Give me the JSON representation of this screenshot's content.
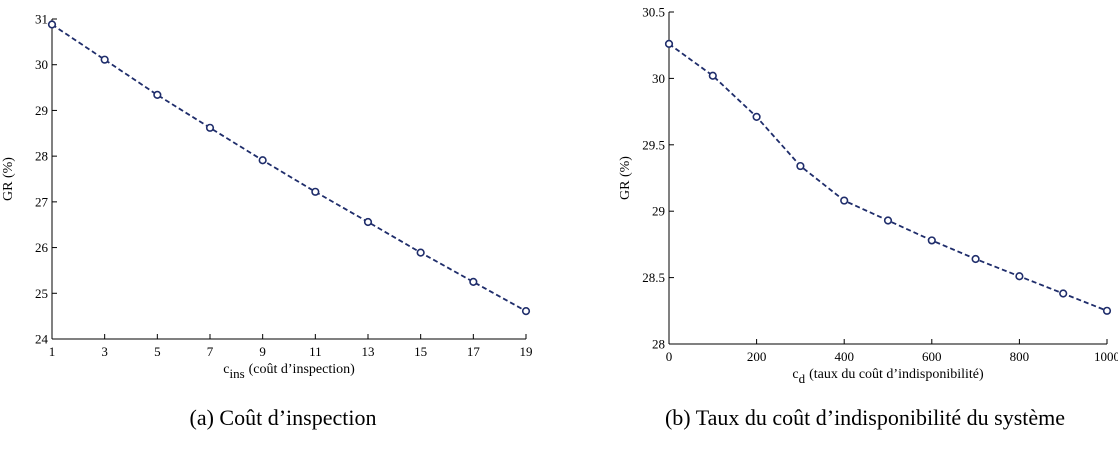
{
  "chart_data": [
    {
      "type": "line",
      "caption": "(a)  Coût d’inspection",
      "ylabel": "GR (%)",
      "xlabel_main": "c",
      "xlabel_sub": "ins",
      "xlabel_rest": "(coût d’inspection)",
      "xlim": [
        1,
        19
      ],
      "ylim": [
        24,
        31
      ],
      "xticks": [
        1,
        3,
        5,
        7,
        9,
        11,
        13,
        15,
        17,
        19
      ],
      "yticks": [
        24,
        25,
        26,
        27,
        28,
        29,
        30,
        31
      ],
      "ytick_labels": [
        "24",
        "25",
        "26",
        "27",
        "28",
        "29",
        "30",
        "31"
      ],
      "series": [
        {
          "x": [
            1,
            3,
            5,
            7,
            9,
            11,
            13,
            15,
            17,
            19
          ],
          "y": [
            30.88,
            30.11,
            29.34,
            28.62,
            27.91,
            27.22,
            26.56,
            25.89,
            25.25,
            24.61
          ],
          "line_style": "dashed",
          "marker": "circle",
          "color": "#1f2d6b"
        }
      ]
    },
    {
      "type": "line",
      "caption": "(b)  Taux du coût d’indisponibilité du système",
      "ylabel": "GR (%)",
      "xlabel_main": "c",
      "xlabel_sub": "d",
      "xlabel_rest": "(taux du coût d’indisponibilité)",
      "xlim": [
        0,
        1000
      ],
      "ylim": [
        28,
        30.5
      ],
      "xticks": [
        0,
        200,
        400,
        600,
        800,
        1000
      ],
      "yticks": [
        28,
        28.5,
        29,
        29.5,
        30,
        30.5
      ],
      "ytick_labels": [
        "28",
        "28.5",
        "29",
        "29.5",
        "30",
        "30.5"
      ],
      "series": [
        {
          "x": [
            0,
            100,
            200,
            300,
            400,
            500,
            600,
            700,
            800,
            900,
            1000
          ],
          "y": [
            30.26,
            30.02,
            29.71,
            29.34,
            29.08,
            28.93,
            28.78,
            28.64,
            28.51,
            28.38,
            28.25
          ],
          "line_style": "dashed",
          "marker": "circle",
          "color": "#1f2d6b"
        }
      ]
    }
  ]
}
